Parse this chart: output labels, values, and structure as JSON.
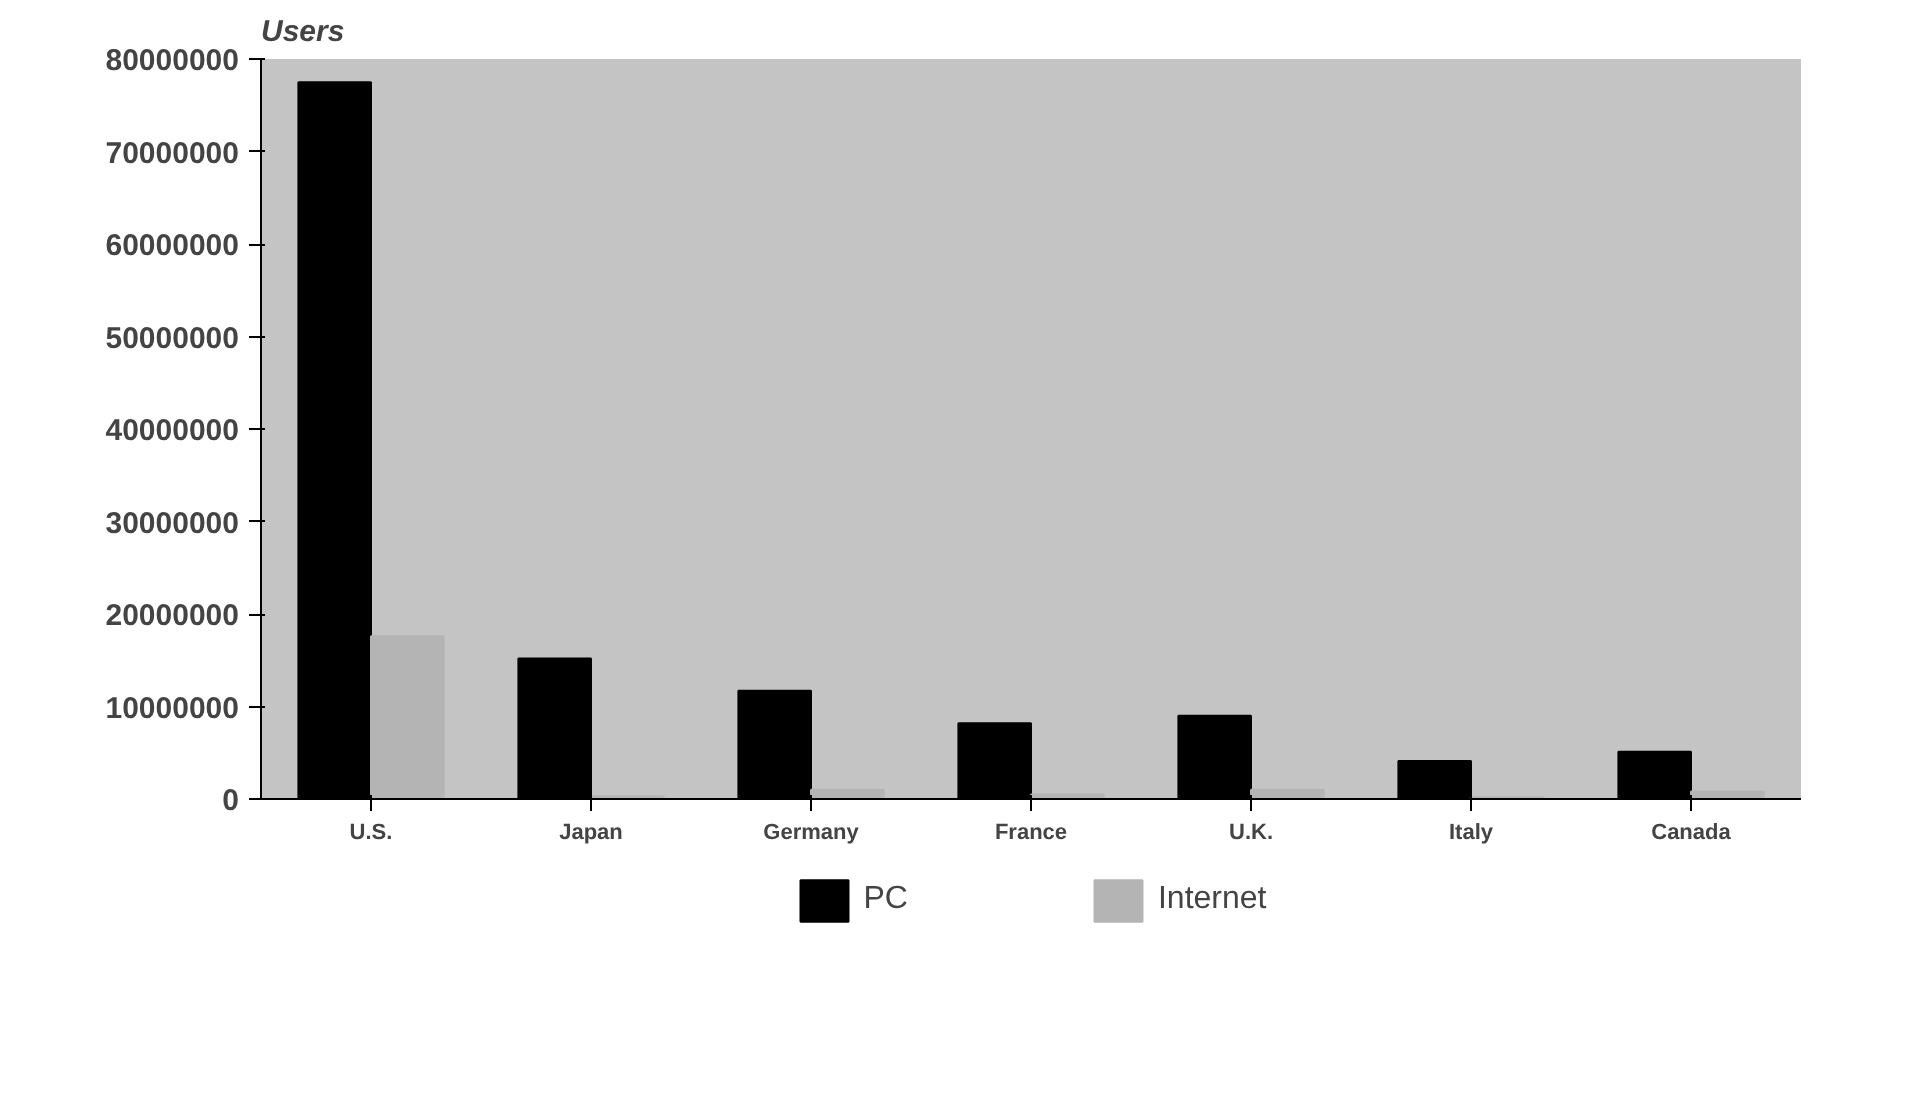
{
  "chart_data": {
    "type": "bar",
    "ylabel": "Users",
    "categories": [
      "U.S.",
      "Japan",
      "Germany",
      "France",
      "U.K.",
      "Italy",
      "Canada"
    ],
    "series": [
      {
        "name": "PC",
        "color": "#000000",
        "values": [
          77500000,
          15200000,
          11700000,
          8200000,
          9000000,
          4100000,
          5100000
        ]
      },
      {
        "name": "Internet",
        "color": "#b4b4b4",
        "values": [
          17600000,
          300000,
          1000000,
          500000,
          1000000,
          200000,
          800000
        ]
      }
    ],
    "ylim": [
      0,
      80000000
    ],
    "yticks": [
      0,
      10000000,
      20000000,
      30000000,
      40000000,
      50000000,
      60000000,
      70000000,
      80000000
    ],
    "grid": false,
    "legend": "bottom"
  }
}
